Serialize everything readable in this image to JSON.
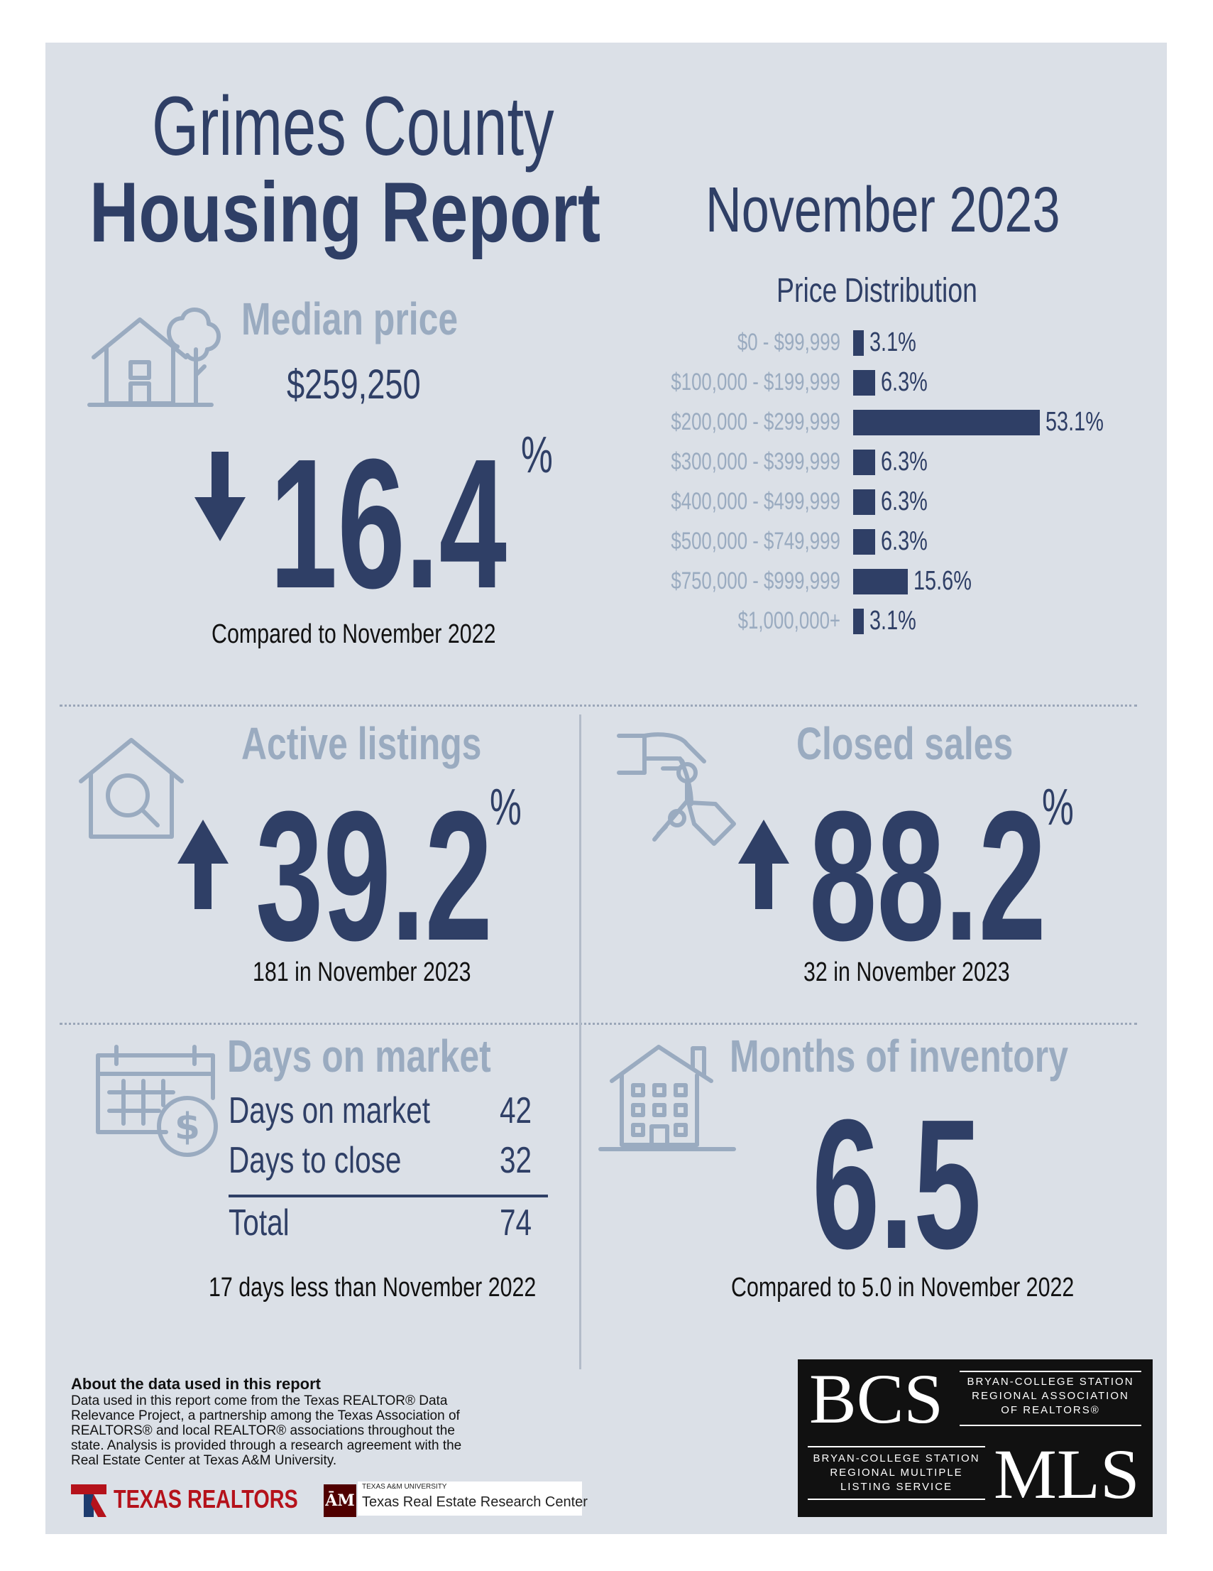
{
  "header": {
    "title_line1": "Grimes County",
    "title_line2": "Housing Report",
    "month": "November 2023"
  },
  "median_price": {
    "label": "Median price",
    "value": "$259,250",
    "change": "16.4",
    "percent_sign": "%",
    "direction": "down",
    "caption": "Compared to November 2022"
  },
  "price_distribution": {
    "title": "Price Distribution",
    "rows": [
      {
        "label": "$0 - $99,999",
        "value": "3.1%"
      },
      {
        "label": "$100,000 - $199,999",
        "value": "6.3%"
      },
      {
        "label": "$200,000 - $299,999",
        "value": "53.1%"
      },
      {
        "label": "$300,000 - $399,999",
        "value": "6.3%"
      },
      {
        "label": "$400,000 - $499,999",
        "value": "6.3%"
      },
      {
        "label": "$500,000 - $749,999",
        "value": "6.3%"
      },
      {
        "label": "$750,000 - $999,999",
        "value": "15.6%"
      },
      {
        "label": "$1,000,000+",
        "value": "3.1%"
      }
    ]
  },
  "chart_data": {
    "type": "bar",
    "title": "Price Distribution",
    "categories": [
      "$0 - $99,999",
      "$100,000 - $199,999",
      "$200,000 - $299,999",
      "$300,000 - $399,999",
      "$400,000 - $499,999",
      "$500,000 - $749,999",
      "$750,000 - $999,999",
      "$1,000,000+"
    ],
    "values": [
      3.1,
      6.3,
      53.1,
      6.3,
      6.3,
      6.3,
      15.6,
      3.1
    ],
    "orientation": "horizontal",
    "unit": "%"
  },
  "active_listings": {
    "label": "Active listings",
    "change": "39.2",
    "percent_sign": "%",
    "direction": "up",
    "caption": "181 in November 2023"
  },
  "closed_sales": {
    "label": "Closed sales",
    "change": "88.2",
    "percent_sign": "%",
    "direction": "up",
    "caption": "32 in November 2023"
  },
  "days_on_market": {
    "label": "Days on market",
    "rows": [
      {
        "label": "Days on market",
        "value": "42"
      },
      {
        "label": "Days to close",
        "value": "32"
      }
    ],
    "total_label": "Total",
    "total_value": "74",
    "caption": "17 days less than November 2022"
  },
  "months_inventory": {
    "label": "Months of inventory",
    "value": "6.5",
    "caption": "Compared to 5.0 in November 2022"
  },
  "about": {
    "heading": "About the data used in this report",
    "text": "Data used in this report come from the Texas REALTOR® Data Relevance Project, a partnership among the Texas Association of REALTORS® and local REALTOR® associations throughout the state. Analysis is provided through a research agreement with the Real Estate Center at Texas A&M University."
  },
  "logos": {
    "texas_realtors": "TEXAS REALTORS",
    "tamu_small": "TEXAS A&M UNIVERSITY",
    "tamu_center": "Texas Real Estate Research Center",
    "bcs_top": "BCS",
    "bcs_top_text": [
      "BRYAN-COLLEGE STATION",
      "REGIONAL ASSOCIATION",
      "OF REALTORS®"
    ],
    "bcs_bottom_text": [
      "BRYAN-COLLEGE STATION",
      "REGIONAL MULTIPLE",
      "LISTING SERVICE"
    ],
    "mls": "MLS"
  },
  "colors": {
    "navy": "#2f3f66",
    "light": "#9aabc0",
    "panel": "#dbe0e7"
  }
}
